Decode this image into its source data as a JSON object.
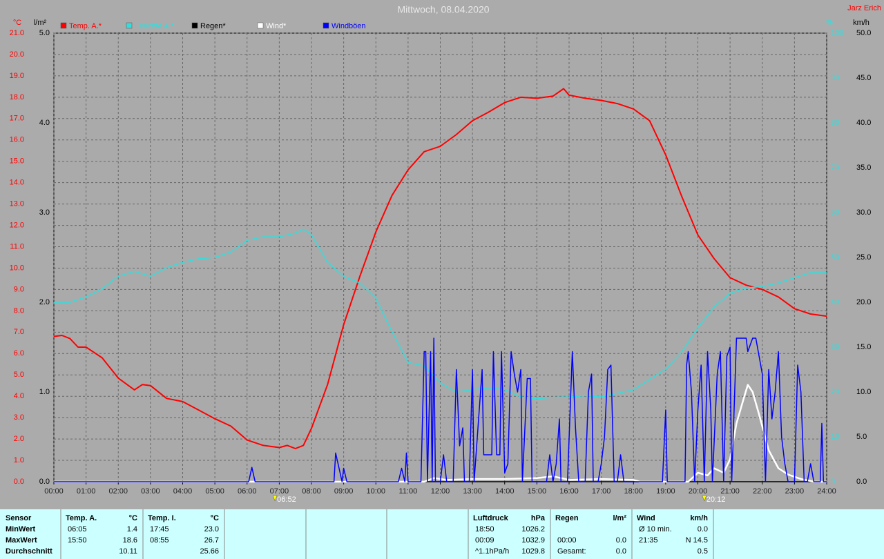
{
  "chart_data": {
    "type": "line",
    "title": "Mittwoch, 08.04.2020",
    "author": "Jarz Erich",
    "y_label": "°C",
    "y2_label": "l/m²",
    "y3_label": "%",
    "y4_label": "km/h",
    "grid": true,
    "xlim": [
      0,
      24
    ],
    "xticks": [
      {
        "value": 0,
        "label": "00:00"
      },
      {
        "value": 1,
        "label": "01:00"
      },
      {
        "value": 2,
        "label": "02:00"
      },
      {
        "value": 3,
        "label": "03:00"
      },
      {
        "value": 4,
        "label": "04:00"
      },
      {
        "value": 5,
        "label": "05:00"
      },
      {
        "value": 6,
        "label": "06:00"
      },
      {
        "value": 7,
        "label": "07:00"
      },
      {
        "value": 8,
        "label": "08:00"
      },
      {
        "value": 9,
        "label": "09:00"
      },
      {
        "value": 10,
        "label": "10:00"
      },
      {
        "value": 11,
        "label": "11:00"
      },
      {
        "value": 12,
        "label": "12:00"
      },
      {
        "value": 13,
        "label": "13:00"
      },
      {
        "value": 14,
        "label": "14:00"
      },
      {
        "value": 15,
        "label": "15:00"
      },
      {
        "value": 16,
        "label": "16:00"
      },
      {
        "value": 17,
        "label": "17:00"
      },
      {
        "value": 18,
        "label": "18:00"
      },
      {
        "value": 19,
        "label": "19:00"
      },
      {
        "value": 20,
        "label": "20:00"
      },
      {
        "value": 21,
        "label": "21:00"
      },
      {
        "value": 22,
        "label": "22:00"
      },
      {
        "value": 23,
        "label": "23:00"
      },
      {
        "value": 24,
        "label": "24:00"
      }
    ],
    "ylim": [
      0,
      21
    ],
    "yticks": [
      {
        "value": 0,
        "label": "0.0"
      },
      {
        "value": 1,
        "label": "1.0"
      },
      {
        "value": 2,
        "label": "2.0"
      },
      {
        "value": 3,
        "label": "3.0"
      },
      {
        "value": 4,
        "label": "4.0"
      },
      {
        "value": 5,
        "label": "5.0"
      },
      {
        "value": 6,
        "label": "6.0"
      },
      {
        "value": 7,
        "label": "7.0"
      },
      {
        "value": 8,
        "label": "8.0"
      },
      {
        "value": 9,
        "label": "9.0"
      },
      {
        "value": 10,
        "label": "10.0"
      },
      {
        "value": 11,
        "label": "11.0"
      },
      {
        "value": 12,
        "label": "12.0"
      },
      {
        "value": 13,
        "label": "13.0"
      },
      {
        "value": 14,
        "label": "14.0"
      },
      {
        "value": 15,
        "label": "15.0"
      },
      {
        "value": 16,
        "label": "16.0"
      },
      {
        "value": 17,
        "label": "17.0"
      },
      {
        "value": 18,
        "label": "18.0"
      },
      {
        "value": 19,
        "label": "19.0"
      },
      {
        "value": 20,
        "label": "20.0"
      },
      {
        "value": 21,
        "label": "21.0"
      }
    ],
    "y2lim": [
      0,
      5
    ],
    "y2ticks": [
      {
        "value": 0,
        "label": "0.0"
      },
      {
        "value": 1,
        "label": "1.0"
      },
      {
        "value": 2,
        "label": "2.0"
      },
      {
        "value": 3,
        "label": "3.0"
      },
      {
        "value": 4,
        "label": "4.0"
      },
      {
        "value": 5,
        "label": "5.0"
      }
    ],
    "y3lim": [
      0,
      100
    ],
    "y3ticks": [
      0,
      10,
      20,
      30,
      40,
      50,
      60,
      70,
      80,
      90,
      100
    ],
    "y4lim": [
      0,
      50
    ],
    "y4ticks": [
      {
        "value": 0,
        "label": "0.0"
      },
      {
        "value": 5,
        "label": "5.0"
      },
      {
        "value": 10,
        "label": "10.0"
      },
      {
        "value": 15,
        "label": "15.0"
      },
      {
        "value": 20,
        "label": "20.0"
      },
      {
        "value": 25,
        "label": "25.0"
      },
      {
        "value": 30,
        "label": "30.0"
      },
      {
        "value": 35,
        "label": "35.0"
      },
      {
        "value": 40,
        "label": "40.0"
      },
      {
        "value": 45,
        "label": "45.0"
      },
      {
        "value": 50,
        "label": "50.0"
      }
    ],
    "sun_events": [
      {
        "value": 6.8667,
        "label": "06:52"
      },
      {
        "value": 20.2,
        "label": "20:12"
      }
    ],
    "series": [
      {
        "name": "Temp. A.*",
        "color": "#ff0000",
        "axis": "y",
        "x": [
          0,
          0.25,
          0.5,
          0.75,
          1,
          1.5,
          2,
          2.5,
          2.75,
          3,
          3.5,
          4,
          4.5,
          5,
          5.5,
          6,
          6.5,
          7,
          7.25,
          7.5,
          7.75,
          8,
          8.5,
          9,
          9.5,
          10,
          10.5,
          11,
          11.5,
          12,
          12.5,
          13,
          13.5,
          14,
          14.5,
          15,
          15.5,
          15.83,
          16,
          16.5,
          17,
          17.5,
          18,
          18.5,
          19,
          19.5,
          20,
          20.5,
          21,
          21.5,
          22,
          22.5,
          23,
          23.5,
          24
        ],
        "values": [
          6.8,
          6.85,
          6.7,
          6.3,
          6.3,
          5.8,
          4.85,
          4.3,
          4.55,
          4.5,
          3.9,
          3.75,
          3.35,
          2.95,
          2.6,
          1.95,
          1.7,
          1.6,
          1.7,
          1.55,
          1.7,
          2.5,
          4.55,
          7.35,
          9.6,
          11.7,
          13.4,
          14.6,
          15.45,
          15.7,
          16.25,
          16.9,
          17.3,
          17.75,
          18.0,
          17.95,
          18.05,
          18.4,
          18.1,
          17.95,
          17.85,
          17.7,
          17.45,
          16.9,
          15.3,
          13.35,
          11.55,
          10.45,
          9.55,
          9.2,
          9.0,
          8.65,
          8.1,
          7.85,
          7.75
        ]
      },
      {
        "name": "Feuchte A.*",
        "color": "#33dddd",
        "axis": "y3",
        "x": [
          0,
          0.5,
          1,
          1.5,
          2,
          2.5,
          3,
          3.5,
          4,
          4.5,
          5,
          5.5,
          6,
          6.5,
          7,
          7.5,
          7.75,
          8,
          8.5,
          9,
          9.5,
          10,
          10.5,
          11,
          11.5,
          12,
          12.5,
          13,
          13.5,
          14,
          14.5,
          15,
          15.5,
          16,
          16.5,
          17,
          17.5,
          18,
          18.5,
          19,
          19.5,
          20,
          20.5,
          21,
          21.5,
          22,
          22.5,
          23,
          23.5,
          24
        ],
        "values": [
          40,
          40,
          41.2,
          43,
          45.8,
          46.9,
          45.8,
          47.7,
          48.9,
          49.7,
          50,
          51.2,
          53.8,
          54.6,
          54.6,
          55.4,
          56.3,
          55.1,
          48.9,
          45.8,
          44.3,
          40.9,
          33.5,
          26.6,
          25.8,
          22,
          20,
          20.5,
          20.9,
          20.5,
          18.9,
          18.5,
          18.8,
          18.9,
          19.2,
          18.9,
          19.7,
          20.5,
          22.8,
          25.1,
          28.9,
          34.3,
          38.9,
          42,
          43.2,
          43.5,
          44.3,
          45.5,
          46.6,
          46.6
        ]
      },
      {
        "name": "Regen*",
        "color": "#000000",
        "axis": "y2",
        "x": [
          0,
          24
        ],
        "values": [
          0,
          0
        ]
      },
      {
        "name": "Wind*",
        "color": "#ffffff",
        "axis": "y4",
        "x": [
          0,
          11.5,
          11.8,
          12.2,
          13.0,
          14.0,
          15.0,
          15.5,
          16.0,
          17.0,
          18.0,
          18.2,
          19.7,
          20.0,
          20.3,
          20.5,
          20.8,
          21.0,
          21.2,
          21.4,
          21.55,
          21.7,
          21.9,
          22.2,
          22.5,
          22.8,
          23.2,
          23.6,
          24
        ],
        "values": [
          0,
          0,
          0.4,
          0.2,
          0.3,
          0.3,
          0.4,
          0.6,
          0.2,
          0.3,
          0.2,
          0,
          0,
          1.0,
          0.7,
          1.5,
          1.0,
          2.5,
          6.5,
          9.0,
          10.8,
          10.0,
          7.5,
          3.5,
          1.5,
          0.8,
          0.3,
          0,
          0
        ]
      },
      {
        "name": "Windböen",
        "color": "#0000ff",
        "axis": "y4",
        "x": [
          0,
          6.05,
          6.15,
          6.25,
          8.7,
          8.75,
          8.95,
          9.0,
          9.1,
          10.7,
          10.8,
          10.9,
          10.95,
          11.0,
          11.4,
          11.5,
          11.55,
          11.6,
          11.7,
          11.75,
          11.8,
          11.85,
          12.0,
          12.1,
          12.2,
          12.4,
          12.5,
          12.6,
          12.7,
          12.75,
          12.9,
          13.0,
          13.05,
          13.3,
          13.35,
          13.6,
          13.65,
          13.75,
          13.85,
          13.9,
          14.0,
          14.1,
          14.2,
          14.3,
          14.4,
          14.5,
          14.55,
          14.7,
          14.8,
          14.85,
          15.0,
          15.3,
          15.4,
          15.5,
          15.6,
          15.7,
          15.75,
          15.95,
          16.1,
          16.2,
          16.3,
          16.5,
          16.6,
          16.7,
          16.75,
          16.9,
          17.0,
          17.1,
          17.2,
          17.3,
          17.4,
          17.5,
          17.6,
          17.7,
          18.9,
          19.0,
          19.05,
          19.6,
          19.65,
          19.7,
          19.8,
          19.9,
          20.0,
          20.1,
          20.2,
          20.3,
          20.4,
          20.45,
          20.6,
          20.7,
          20.8,
          20.9,
          21.0,
          21.05,
          21.2,
          21.5,
          21.55,
          21.7,
          21.8,
          21.9,
          22.0,
          22.1,
          22.2,
          22.3,
          22.4,
          22.5,
          22.6,
          22.7,
          22.8,
          23.0,
          23.1,
          23.2,
          23.3,
          23.4,
          23.5,
          23.6,
          23.8,
          23.85,
          23.9,
          24
        ],
        "values": [
          0,
          0,
          1.6,
          0,
          0,
          3.2,
          0,
          1.5,
          0,
          0,
          1.5,
          0,
          3.2,
          0,
          0,
          14.5,
          14.5,
          0,
          14.5,
          0,
          16,
          0,
          0,
          3,
          0,
          0,
          12.5,
          4,
          6,
          0,
          0,
          12.5,
          0,
          12.5,
          3,
          3,
          14.5,
          3,
          3,
          14.5,
          1,
          2,
          14.5,
          12,
          10,
          12.5,
          0,
          11.5,
          11.5,
          0,
          0,
          0,
          3,
          0,
          2,
          7,
          0,
          0,
          14.5,
          6,
          0,
          0,
          10,
          12,
          0,
          0,
          2,
          5,
          12.5,
          13,
          0,
          0,
          3,
          0,
          0,
          8,
          0,
          0,
          13,
          14.5,
          10,
          0,
          8,
          13,
          0,
          14.5,
          8,
          0,
          12,
          14.5,
          0,
          14,
          15,
          0,
          16,
          16,
          14.5,
          16,
          16,
          14,
          12,
          0,
          12.5,
          7,
          10,
          14.5,
          5,
          2,
          0,
          0,
          13,
          10,
          0,
          0,
          2,
          0,
          0,
          6.5,
          0,
          0
        ]
      }
    ]
  },
  "stats": {
    "row_labels": [
      "Sensor",
      "MinWert",
      "MaxWert",
      "Durchschnitt"
    ],
    "groups": [
      {
        "name": "Temp. A.",
        "unit": "°C",
        "rows": [
          {
            "time": "06:05",
            "value": "1.4"
          },
          {
            "time": "15:50",
            "value": "18.6"
          },
          {
            "value": "10.11"
          }
        ]
      },
      {
        "name": "Temp. I.",
        "unit": "°C",
        "rows": [
          {
            "time": "17:45",
            "value": "23.0"
          },
          {
            "time": "08:55",
            "value": "26.7"
          },
          {
            "value": "25.66"
          }
        ]
      },
      {
        "name": "Luftdruck",
        "unit": "hPa",
        "rows": [
          {
            "time": "18:50",
            "value": "1026.2"
          },
          {
            "time": "00:09",
            "value": "1032.9"
          },
          {
            "time": "^1.1hPa/h",
            "value": "1029.8"
          }
        ]
      },
      {
        "name": "Regen",
        "unit": "l/m²",
        "rows": [
          null,
          {
            "time": "00:00",
            "value": "0.0"
          },
          {
            "time": "Gesamt:",
            "value": "0.0"
          }
        ]
      },
      {
        "name": "Wind",
        "unit": "km/h",
        "rows": [
          {
            "time": "Ø 10 min.",
            "value": "0.0"
          },
          {
            "time": "21:35",
            "value": "N 14.5"
          },
          {
            "value": "0.5"
          }
        ]
      }
    ]
  }
}
